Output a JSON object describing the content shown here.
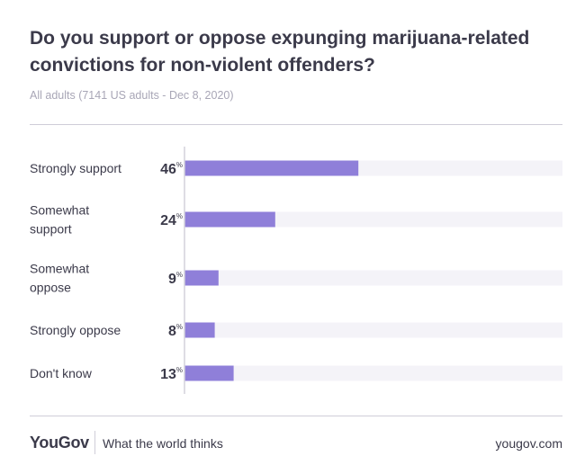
{
  "header": {
    "title": "Do you support or oppose expunging marijuana-related convictions for non-violent offenders?",
    "subtitle": "All adults (7141 US adults - Dec 8, 2020)"
  },
  "chart_data": {
    "type": "bar",
    "orientation": "horizontal",
    "categories": [
      [
        "Strongly support"
      ],
      [
        "Somewhat",
        "support"
      ],
      [
        "Somewhat",
        "oppose"
      ],
      [
        "Strongly oppose"
      ],
      [
        "Don't know"
      ]
    ],
    "values": [
      46,
      24,
      9,
      8,
      13
    ],
    "unit": "%",
    "xlim": [
      0,
      100
    ],
    "colors": {
      "bar": "#8f7fd9",
      "track": "#f4f3f8",
      "axis": "#d4d2dc"
    }
  },
  "footer": {
    "brand": "YouGov",
    "tagline": "What the world thinks",
    "site": "yougov.com"
  }
}
